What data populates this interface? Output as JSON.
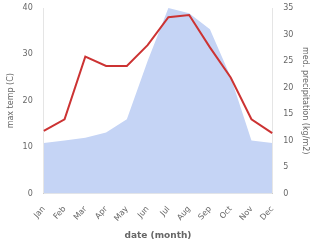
{
  "chart_data": {
    "type": "line",
    "categories": [
      "Jan",
      "Feb",
      "Mar",
      "Apr",
      "May",
      "Jun",
      "Jul",
      "Aug",
      "Sep",
      "Oct",
      "Nov",
      "Dec"
    ],
    "series": [
      {
        "type": "area",
        "color": "#c5d4f5",
        "axis": "y2",
        "values": [
          9.5,
          10.0,
          10.5,
          11.5,
          14.0,
          25.0,
          35.0,
          34.0,
          31.0,
          22.0,
          10.0,
          9.5
        ]
      },
      {
        "type": "line",
        "color": "#cc3333",
        "values": [
          13.5,
          16.0,
          29.5,
          27.5,
          27.5,
          32.0,
          38.0,
          38.5,
          31.5,
          25.0,
          16.0,
          13.0
        ]
      }
    ],
    "x_label": "date (month)",
    "y_label": "max temp (C)",
    "y2_label": "med. precipitation (kg/m2)",
    "ylim": [
      0,
      40
    ],
    "yticks": [
      0,
      10,
      20,
      30,
      40
    ],
    "y2lim": [
      0,
      35
    ],
    "y2ticks": [
      0,
      5,
      10,
      15,
      20,
      25,
      30,
      35
    ],
    "grid": false
  }
}
